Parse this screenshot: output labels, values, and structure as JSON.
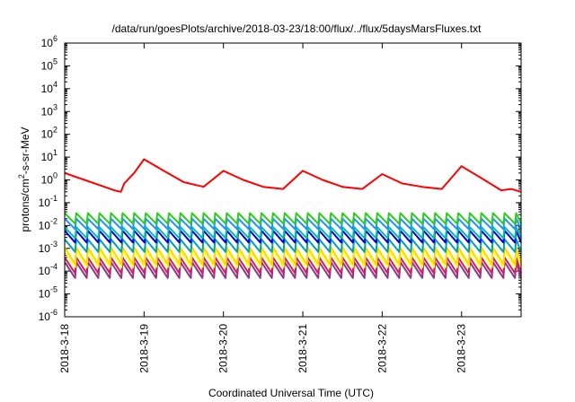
{
  "chart_data": {
    "type": "line",
    "title": "/data/run/goesPlots/archive/2018-03-23/18:00/flux/../flux/5daysMarsFluxes.txt",
    "xlabel": "Coordinated Universal Time (UTC)",
    "ylabel": {
      "prefix": "protons/cm",
      "superscript": "2",
      "suffix": "-s-sr-MeV"
    },
    "yscale": "log",
    "ylim_exponents": [
      -6,
      6
    ],
    "y_ticks": [
      {
        "base": "10",
        "exp": "-6"
      },
      {
        "base": "10",
        "exp": "-5"
      },
      {
        "base": "10",
        "exp": "-4"
      },
      {
        "base": "10",
        "exp": "-3"
      },
      {
        "base": "10",
        "exp": "-2"
      },
      {
        "base": "10",
        "exp": "-1"
      },
      {
        "base": "10",
        "exp": "0"
      },
      {
        "base": "10",
        "exp": "1"
      },
      {
        "base": "10",
        "exp": "2"
      },
      {
        "base": "10",
        "exp": "3"
      },
      {
        "base": "10",
        "exp": "4"
      },
      {
        "base": "10",
        "exp": "5"
      },
      {
        "base": "10",
        "exp": "6"
      }
    ],
    "x_start": "2018-03-18T00:00",
    "x_end": "2018-03-23T18:00",
    "x_ticks": [
      "2018-3-18",
      "2018-3-19",
      "2018-3-20",
      "2018-3-21",
      "2018-3-22",
      "2018-3-23"
    ],
    "grid": false,
    "legend": "none",
    "series": [
      {
        "color": "#ff0000",
        "sawtooth": false,
        "x": [
          "2018-03-18T00:00",
          "2018-03-18T06:00",
          "2018-03-18T12:00",
          "2018-03-18T15:00",
          "2018-03-18T17:00",
          "2018-03-18T18:00",
          "2018-03-18T21:00",
          "2018-03-19T00:00",
          "2018-03-19T06:00",
          "2018-03-19T12:00",
          "2018-03-19T18:00",
          "2018-03-20T00:00",
          "2018-03-20T06:00",
          "2018-03-20T12:00",
          "2018-03-20T18:00",
          "2018-03-21T00:00",
          "2018-03-21T06:00",
          "2018-03-21T12:00",
          "2018-03-21T18:00",
          "2018-03-22T00:00",
          "2018-03-22T06:00",
          "2018-03-22T12:00",
          "2018-03-22T18:00",
          "2018-03-23T00:00",
          "2018-03-23T06:00",
          "2018-03-23T12:00",
          "2018-03-23T15:00",
          "2018-03-23T18:00"
        ],
        "y": [
          2.0,
          1.0,
          0.5,
          0.35,
          0.3,
          0.7,
          2.0,
          8.0,
          2.5,
          0.8,
          0.5,
          2.5,
          1.0,
          0.5,
          0.4,
          2.5,
          1.0,
          0.5,
          0.4,
          1.8,
          0.7,
          0.5,
          0.4,
          4.0,
          1.2,
          0.35,
          0.4,
          0.3
        ]
      },
      {
        "color": "#2ecc20",
        "sawtooth": true,
        "y_high": 0.035,
        "y_low": 0.012
      },
      {
        "color": "#1e90ff",
        "sawtooth": true,
        "y_high": 0.02,
        "y_low": 0.007
      },
      {
        "color": "#00bfa5",
        "sawtooth": true,
        "y_high": 0.0085,
        "y_low": 0.0028
      },
      {
        "color": "#0000dd",
        "sawtooth": true,
        "y_high": 0.006,
        "y_low": 0.0018
      },
      {
        "color": "#00a0b0",
        "sawtooth": true,
        "y_high": 0.0025,
        "y_low": 0.0007
      },
      {
        "color": "#ffd700",
        "sawtooth": true,
        "y_high": 0.0011,
        "y_low": 0.0002
      },
      {
        "color": "#ffff40",
        "sawtooth": true,
        "y_high": 0.0008,
        "y_low": 0.00015
      },
      {
        "color": "#cc2060",
        "sawtooth": true,
        "y_high": 0.0004,
        "y_low": 8e-05
      },
      {
        "color": "#8b3a8b",
        "sawtooth": true,
        "y_high": 0.00025,
        "y_low": 5e-05
      }
    ],
    "sawtooth_period_hours": 3.5
  }
}
